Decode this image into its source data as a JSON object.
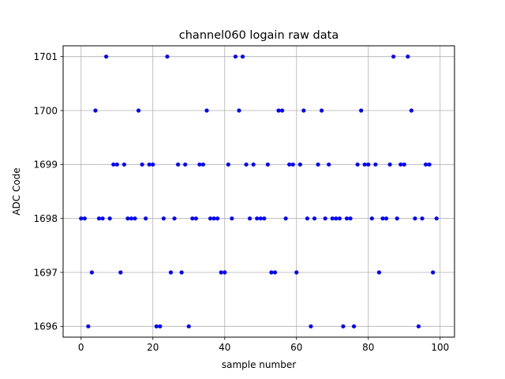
{
  "chart_data": {
    "type": "scatter",
    "title": "channel060 logain raw data",
    "xlabel": "sample number",
    "ylabel": "ADC Code",
    "xlim": [
      -5,
      104
    ],
    "ylim": [
      1695.8,
      1701.2
    ],
    "xticks": [
      0,
      20,
      40,
      60,
      80,
      100
    ],
    "yticks": [
      1696,
      1697,
      1698,
      1699,
      1700,
      1701
    ],
    "grid": true,
    "marker_color": "#0000ff",
    "grid_color": "#b0b0b0",
    "series": [
      {
        "x": [
          0,
          1,
          2,
          3,
          4,
          5,
          6,
          7,
          8,
          9,
          10,
          11,
          12,
          13,
          14,
          15,
          16,
          17,
          18,
          19,
          20,
          21,
          22,
          23,
          24,
          25,
          26,
          27,
          28,
          29,
          30,
          31,
          32,
          33,
          34,
          35,
          36,
          37,
          38,
          39,
          40,
          41,
          42,
          43,
          44,
          45,
          46,
          47,
          48,
          49,
          50,
          51,
          52,
          53,
          54,
          55,
          56,
          57,
          58,
          59,
          60,
          61,
          62,
          63,
          64,
          65,
          66,
          67,
          68,
          69,
          70,
          71,
          72,
          73,
          74,
          75,
          76,
          77,
          78,
          79,
          80,
          81,
          82,
          83,
          84,
          85,
          86,
          87,
          88,
          89,
          90,
          91,
          92,
          93,
          94,
          95,
          96,
          97,
          98,
          99
        ],
        "y": [
          1698,
          1698,
          1696,
          1697,
          1700,
          1698,
          1698,
          1701,
          1698,
          1699,
          1699,
          1697,
          1699,
          1698,
          1698,
          1698,
          1700,
          1699,
          1698,
          1699,
          1699,
          1696,
          1696,
          1698,
          1701,
          1697,
          1698,
          1699,
          1697,
          1699,
          1696,
          1698,
          1698,
          1699,
          1699,
          1700,
          1698,
          1698,
          1698,
          1697,
          1697,
          1699,
          1698,
          1701,
          1700,
          1701,
          1699,
          1698,
          1699,
          1698,
          1698,
          1698,
          1699,
          1697,
          1697,
          1700,
          1700,
          1698,
          1699,
          1699,
          1697,
          1699,
          1700,
          1698,
          1696,
          1698,
          1699,
          1700,
          1698,
          1699,
          1698,
          1698,
          1698,
          1696,
          1698,
          1698,
          1696,
          1699,
          1700,
          1699,
          1699,
          1698,
          1699,
          1697,
          1698,
          1698,
          1699,
          1701,
          1698,
          1699,
          1699,
          1701,
          1700,
          1698,
          1696,
          1698,
          1699,
          1699,
          1697,
          1698
        ]
      }
    ]
  }
}
